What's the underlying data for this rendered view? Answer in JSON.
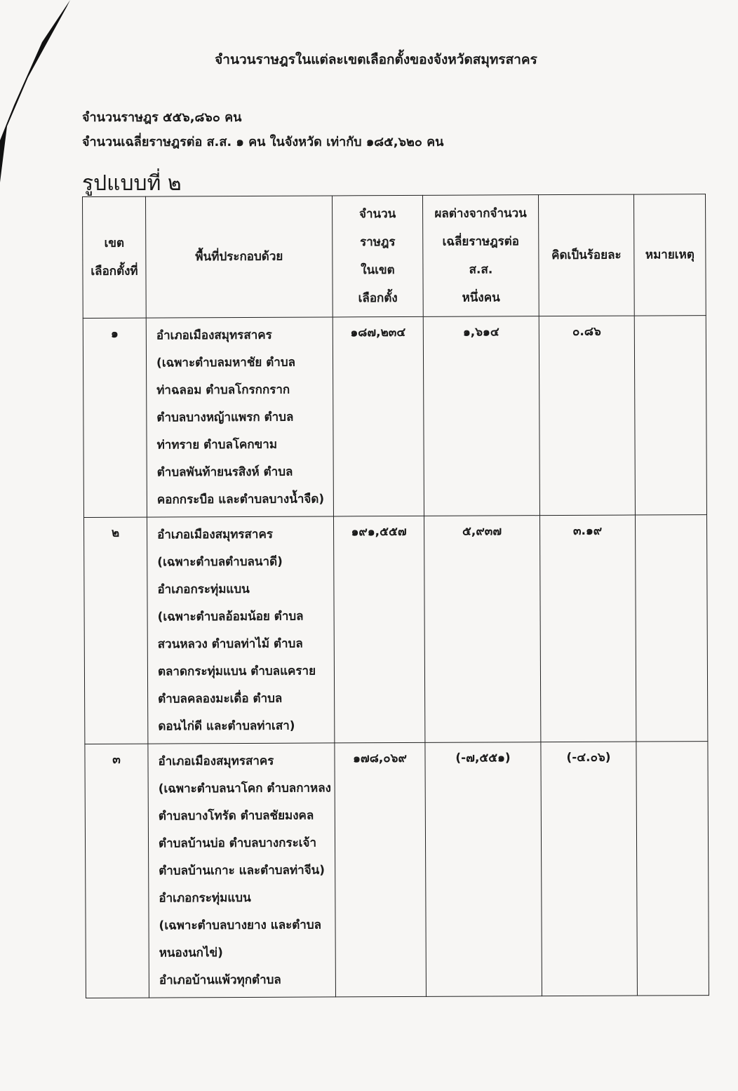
{
  "title": "จำนวนราษฎรในแต่ละเขตเลือกตั้งของจังหวัดสมุทรสาคร",
  "population_line": "จำนวนราษฎร  ๕๕๖,๘๖๐ คน",
  "average_line": "จำนวนเฉลี่ยราษฎรต่อ ส.ส. ๑ คน ในจังหวัด เท่ากับ ๑๘๕,๖๒๐ คน",
  "format_label": "รูปแบบที่  ๒",
  "table": {
    "headers": [
      "เขต\nเลือกตั้งที่",
      "พื้นที่ประกอบด้วย",
      "จำนวน\nราษฎร\nในเขต\nเลือกตั้ง",
      "ผลต่างจากจำนวน\nเฉลี่ยราษฎรต่อ\nส.ส.\nหนึ่งคน",
      "คิดเป็นร้อยละ",
      "หมายเหตุ"
    ],
    "rows": [
      {
        "district": "๑",
        "area_lines": [
          "อำเภอเมืองสมุทรสาคร",
          "(เฉพาะตำบลมหาชัย ตำบล",
          "ท่าฉลอม ตำบลโกรกกราก",
          "ตำบลบางหญ้าแพรก ตำบล",
          "ท่าทราย ตำบลโคกขาม",
          "ตำบลพันท้ายนรสิงห์ ตำบล",
          "คอกกระบือ และตำบลบางน้ำจืด)"
        ],
        "population": "๑๘๗,๒๓๔",
        "difference": "๑,๖๑๔",
        "percent": "๐.๘๖",
        "note": ""
      },
      {
        "district": "๒",
        "area_lines": [
          "อำเภอเมืองสมุทรสาคร",
          "(เฉพาะตำบลตำบลนาดี)",
          "อำเภอกระทุ่มแบน",
          "(เฉพาะตำบลอ้อมน้อย ตำบล",
          "สวนหลวง ตำบลท่าไม้ ตำบล",
          "ตลาดกระทุ่มแบน ตำบลแคราย",
          "ตำบลคลองมะเดื่อ ตำบล",
          "ดอนไก่ดี และตำบลท่าเสา)"
        ],
        "population": "๑๙๑,๕๕๗",
        "difference": "๕,๙๓๗",
        "percent": "๓.๑๙",
        "note": ""
      },
      {
        "district": "๓",
        "area_lines": [
          "อำเภอเมืองสมุทรสาคร",
          "(เฉพาะตำบลนาโคก ตำบลกาหลง",
          "ตำบลบางโทรัด ตำบลชัยมงคล",
          "ตำบลบ้านบ่อ ตำบลบางกระเจ้า",
          "ตำบลบ้านเกาะ และตำบลท่าจีน)",
          "อำเภอกระทุ่มแบน",
          "(เฉพาะตำบลบางยาง และตำบล",
          "หนองนกไข่)",
          "อำเภอบ้านแพ้วทุกตำบล"
        ],
        "population": "๑๗๘,๐๖๙",
        "difference": "(-๗,๕๕๑)",
        "percent": "(-๔.๐๖)",
        "note": ""
      }
    ]
  }
}
